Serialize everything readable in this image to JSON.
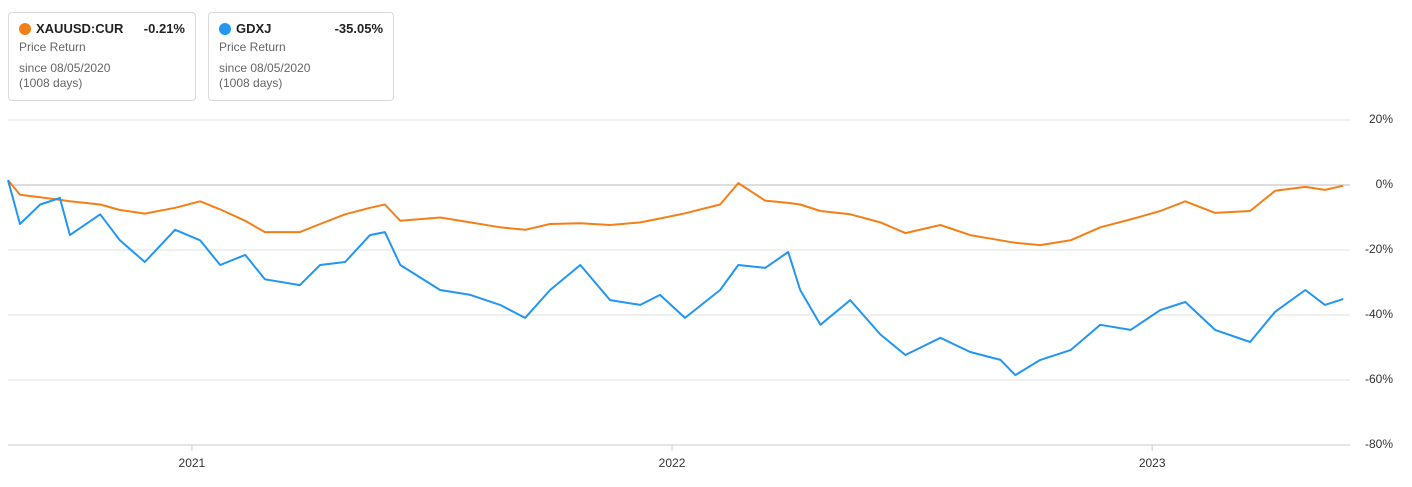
{
  "chart_data": {
    "type": "line",
    "x": [
      2020.617,
      2020.642,
      2020.684,
      2020.725,
      2020.746,
      2020.809,
      2020.85,
      2020.902,
      2020.965,
      2021.017,
      2021.059,
      2021.111,
      2021.152,
      2021.225,
      2021.267,
      2021.319,
      2021.371,
      2021.402,
      2021.434,
      2021.517,
      2021.58,
      2021.642,
      2021.694,
      2021.746,
      2021.809,
      2021.871,
      2021.934,
      2021.975,
      2022.027,
      2022.1,
      2022.138,
      2022.194,
      2022.242,
      2022.267,
      2022.309,
      2022.371,
      2022.434,
      2022.486,
      2022.559,
      2022.621,
      2022.684,
      2022.715,
      2022.767,
      2022.83,
      2022.892,
      2022.955,
      2023.017,
      2023.069,
      2023.131,
      2023.204,
      2023.256,
      2023.319,
      2023.36,
      2023.398
    ],
    "series": [
      {
        "name": "XAUUSD:CUR",
        "color": "#f57f17",
        "change": "-0.21%",
        "metric": "Price Return",
        "since": "since 08/05/2020",
        "days": "(1008 days)",
        "values": [
          1.5,
          -3,
          -3.8,
          -4.6,
          -5,
          -6,
          -7.7,
          -8.8,
          -7,
          -5,
          -7.5,
          -11,
          -14.5,
          -14.5,
          -12,
          -9,
          -7,
          -6,
          -11,
          -10,
          -11.5,
          -13,
          -13.8,
          -12,
          -11.8,
          -12.3,
          -11.5,
          -10.3,
          -8.7,
          -6,
          0.6,
          -4.8,
          -5.5,
          -6,
          -8,
          -9,
          -11.5,
          -14.8,
          -12.3,
          -15.4,
          -17,
          -17.8,
          -18.5,
          -17,
          -13,
          -10.6,
          -8,
          -5,
          -8.6,
          -8,
          -1.8,
          -0.6,
          -1.5,
          -0.21
        ]
      },
      {
        "name": "GDXJ",
        "color": "#2196f3",
        "change": "-35.05%",
        "metric": "Price Return",
        "since": "since 08/05/2020",
        "days": "(1008 days)",
        "values": [
          1.5,
          -12,
          -6,
          -4,
          -15.4,
          -9,
          -17,
          -23.7,
          -13.8,
          -17,
          -24.6,
          -21.5,
          -29,
          -30.8,
          -24.6,
          -23.7,
          -15.4,
          -14.5,
          -24.6,
          -32.3,
          -33.8,
          -36.9,
          -40.9,
          -32.3,
          -24.6,
          -35.4,
          -36.9,
          -33.8,
          -40.9,
          -32.3,
          -24.6,
          -25.5,
          -20.6,
          -32.3,
          -43,
          -35.4,
          -46,
          -52.3,
          -47,
          -51.4,
          -53.8,
          -58.5,
          -53.8,
          -50.8,
          -43,
          -44.6,
          -38.5,
          -36,
          -44.6,
          -48.3,
          -39,
          -32.3,
          -36.9,
          -35.05
        ]
      }
    ],
    "xlim": [
      2020.617,
      2023.412
    ],
    "xticks": [
      2021,
      2022,
      2023
    ],
    "ylim": [
      -80,
      20
    ],
    "yticks": [
      {
        "value": 20,
        "label": "20%"
      },
      {
        "value": 0,
        "label": "0%"
      },
      {
        "value": -20,
        "label": "-20%"
      },
      {
        "value": -40,
        "label": "-40%"
      },
      {
        "value": -60,
        "label": "-60%"
      },
      {
        "value": -80,
        "label": "-80%"
      }
    ],
    "grid": true
  }
}
